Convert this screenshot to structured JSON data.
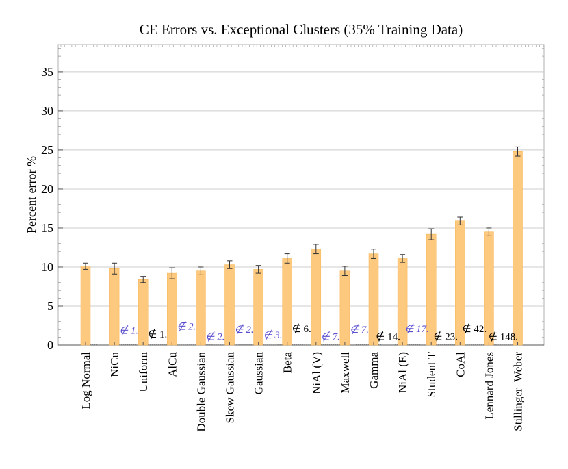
{
  "chart_data": {
    "type": "bar",
    "title": "CE Errors vs. Exceptional Clusters (35% Training Data)",
    "xlabel": "",
    "ylabel": "Percent error %",
    "ylim": [
      0,
      38.5
    ],
    "yticks": [
      0,
      5,
      10,
      15,
      20,
      25,
      30,
      35
    ],
    "grid": true,
    "categories": [
      "Log Normal",
      "NiCu",
      "Uniform",
      "AlCu",
      "Double Gaussian",
      "Skew Gaussian",
      "Gaussian",
      "Beta",
      "NiAl (V)",
      "Maxwell",
      "Gamma",
      "NiAl (E)",
      "Student T",
      "CoAl",
      "Lennard Jones",
      "Stillinger–Weber"
    ],
    "values": [
      10.1,
      9.8,
      8.4,
      9.2,
      9.5,
      10.3,
      9.7,
      11.1,
      12.3,
      9.5,
      11.7,
      11.1,
      14.2,
      15.9,
      14.5,
      24.8
    ],
    "errors": [
      0.4,
      0.7,
      0.4,
      0.7,
      0.5,
      0.5,
      0.5,
      0.6,
      0.6,
      0.6,
      0.6,
      0.5,
      0.7,
      0.5,
      0.5,
      0.6
    ],
    "annotations": [
      {
        "text": "∉ 1.",
        "y": 1.9,
        "color": "#5a4fcf"
      },
      {
        "text": "∉ 1.",
        "y": 1.4,
        "color": "#000000"
      },
      {
        "text": "∉ 2.",
        "y": 2.4,
        "color": "#5a4fcf"
      },
      {
        "text": "∉ 2.",
        "y": 1.1,
        "color": "#5a4fcf"
      },
      {
        "text": "∉ 2.",
        "y": 2.0,
        "color": "#5a4fcf"
      },
      {
        "text": "∉ 3.",
        "y": 1.3,
        "color": "#5a4fcf"
      },
      {
        "text": "∉ 6.",
        "y": 2.1,
        "color": "#000000"
      },
      {
        "text": "∉ 7.",
        "y": 1.1,
        "color": "#5a4fcf"
      },
      {
        "text": "∉ 7.",
        "y": 2.0,
        "color": "#5a4fcf"
      },
      {
        "text": "∉ 14.",
        "y": 1.1,
        "color": "#000000"
      },
      {
        "text": "∉ 17.",
        "y": 2.1,
        "color": "#5a4fcf"
      },
      {
        "text": "∉ 23.",
        "y": 1.1,
        "color": "#000000"
      },
      {
        "text": "∉ 42.",
        "y": 2.1,
        "color": "#000000"
      },
      {
        "text": "∉ 148.",
        "y": 1.1,
        "color": "#000000"
      }
    ],
    "bar_color": "#fdc97e",
    "grid_color": "#cccccc"
  }
}
